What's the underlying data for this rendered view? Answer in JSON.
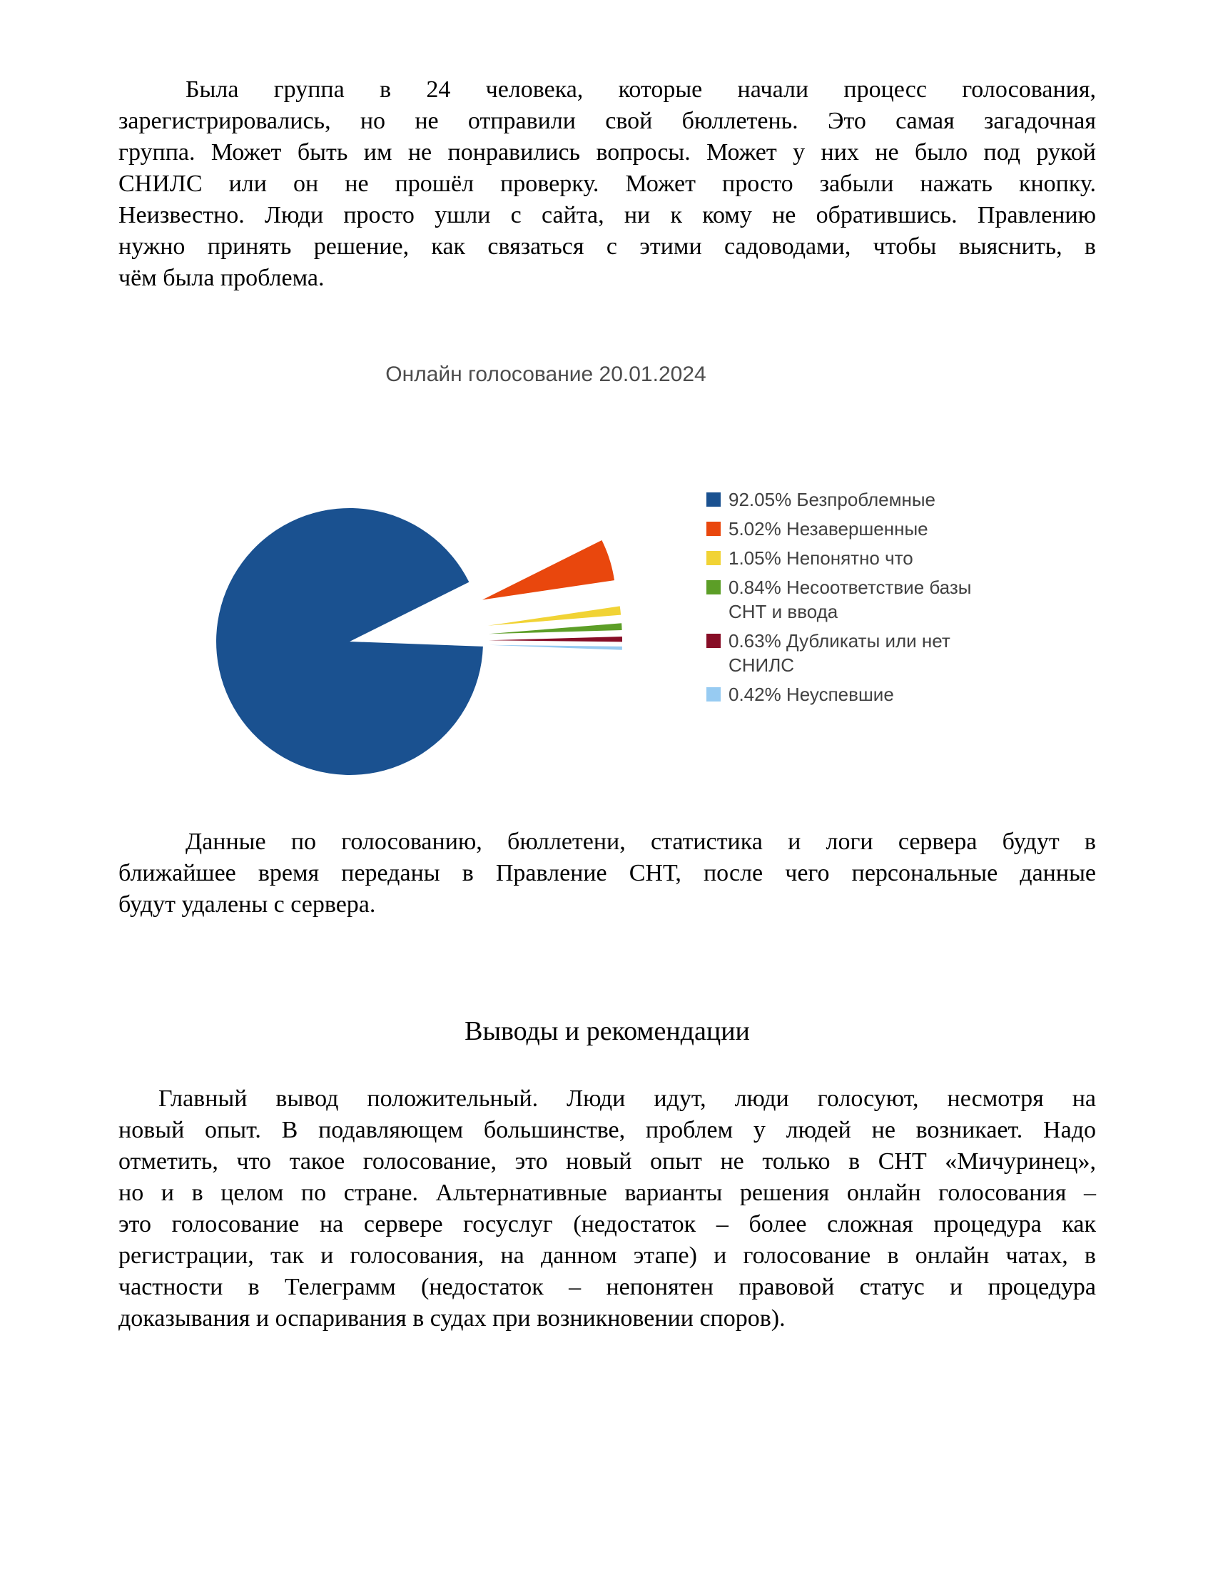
{
  "document": {
    "paragraph_intro": {
      "lines": [
        "Была группа в 24 человека, которые начали процесс голосования,",
        "зарегистрировались, но не отправили свой бюллетень. Это самая загадочная",
        "группа. Может быть им не понравились вопросы. Может у них не было под рукой",
        "СНИЛС или он не прошёл проверку. Может просто забыли нажать кнопку.",
        "Неизвестно. Люди просто ушли с сайта, ни к кому не обратившись. Правлению",
        "нужно принять решение, как связаться с этими садоводами, чтобы выяснить, в",
        "чём была проблема."
      ]
    },
    "paragraph_data_transfer": {
      "lines": [
        "Данные по голосованию, бюллетени, статистика и логи сервера будут в",
        "ближайшее время переданы в Правление СНТ, после чего персональные данные",
        "будут удалены с сервера."
      ]
    },
    "heading_conclusions": "Выводы и рекомендации",
    "paragraph_conclusions": {
      "lines": [
        "Главный вывод положительный. Люди идут, люди голосуют, несмотря на",
        "новый опыт. В подавляющем большинстве, проблем у людей не возникает. Надо",
        "отметить, что такое голосование, это новый опыт не только в СНТ «Мичуринец»,",
        "но и в целом по стране. Альтернативные варианты решения онлайн голосования –",
        "это голосование на сервере госуслуг (недостаток – более сложная процедура как",
        "регистрации, так и голосования, на данном этапе) и голосование в онлайн чатах, в",
        "частности в Телеграмм (недостаток – непонятен правовой статус и процедура",
        "доказывания и оспаривания в судах при возникновении споров)."
      ]
    }
  },
  "chart_data": {
    "type": "pie",
    "title": "Онлайн голосование 20.01.2024",
    "title_color": "#4c4c4c",
    "legend_position": "right",
    "slices": [
      {
        "label": "Безпроблемные",
        "value": 92.05,
        "color": "#1A5190",
        "exploded": false
      },
      {
        "label": "Незавершенные",
        "value": 5.02,
        "color": "#E9470D",
        "exploded": true
      },
      {
        "label": "Непонятно что",
        "value": 1.05,
        "color": "#F1D335",
        "exploded": true
      },
      {
        "label": "Несоответствие базы СНТ и ввода",
        "value": 0.84,
        "color": "#5C9E27",
        "exploded": true
      },
      {
        "label": "Дубликаты или нет СНИЛС",
        "value": 0.63,
        "color": "#870D26",
        "exploded": true
      },
      {
        "label": "Неуспевшие",
        "value": 0.42,
        "color": "#97CBF2",
        "exploded": true
      }
    ]
  }
}
